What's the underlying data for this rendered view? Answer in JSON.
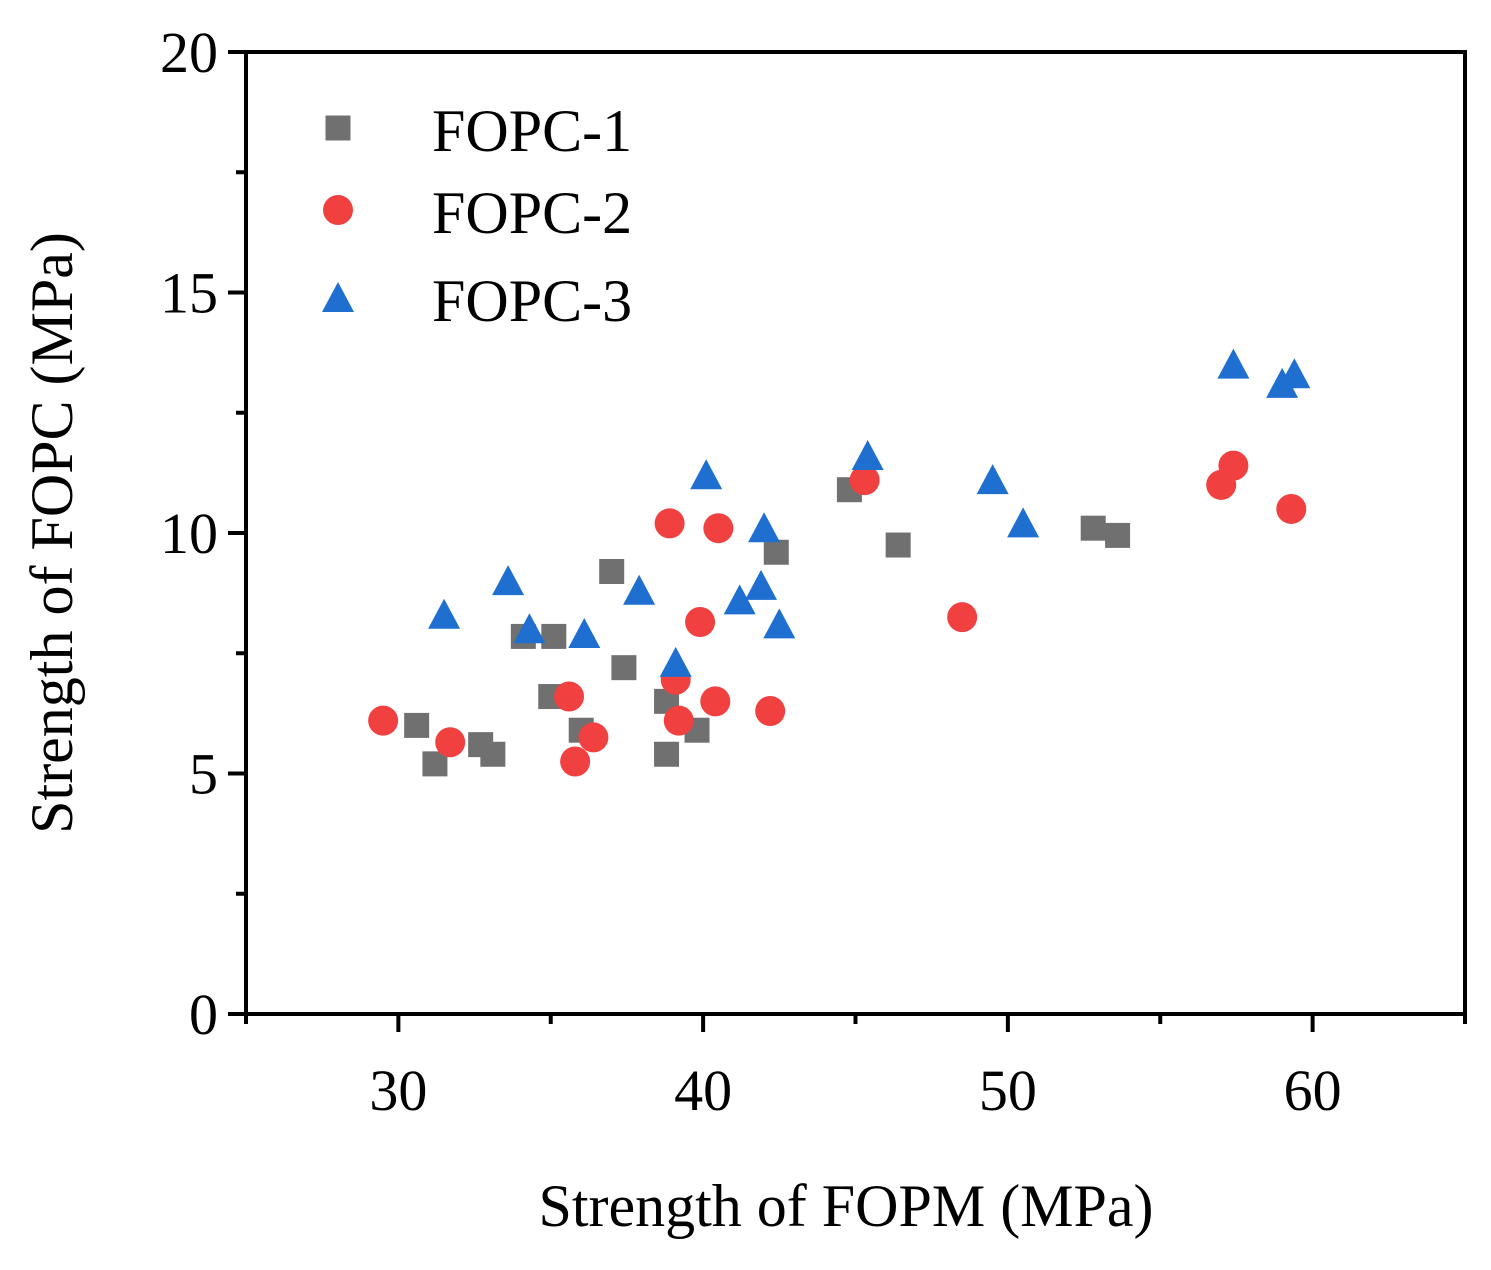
{
  "chart_data": {
    "type": "scatter",
    "title": "",
    "xlabel": "Strength of FOPM (MPa)",
    "ylabel": "Strength of  FOPC (MPa)",
    "xlim": [
      25,
      65
    ],
    "ylim": [
      0,
      20
    ],
    "x_ticks": [
      30,
      40,
      50,
      60
    ],
    "y_ticks": [
      0,
      5,
      10,
      15,
      20
    ],
    "grid": false,
    "legend_position": "top-left",
    "series": [
      {
        "name": "FOPC-1",
        "marker": "square",
        "color": "#707070",
        "points": [
          [
            30.6,
            6.0
          ],
          [
            31.2,
            5.2
          ],
          [
            32.7,
            5.6
          ],
          [
            33.1,
            5.4
          ],
          [
            34.1,
            7.85
          ],
          [
            35.1,
            7.85
          ],
          [
            35.0,
            6.6
          ],
          [
            36.0,
            5.9
          ],
          [
            37.0,
            9.2
          ],
          [
            37.4,
            7.2
          ],
          [
            38.8,
            5.4
          ],
          [
            38.8,
            6.5
          ],
          [
            39.8,
            5.9
          ],
          [
            42.4,
            9.6
          ],
          [
            44.8,
            10.9
          ],
          [
            46.4,
            9.75
          ],
          [
            52.8,
            10.1
          ],
          [
            53.6,
            9.95
          ]
        ]
      },
      {
        "name": "FOPC-2",
        "marker": "circle",
        "color": "#f04040",
        "points": [
          [
            29.5,
            6.1
          ],
          [
            31.7,
            5.65
          ],
          [
            35.6,
            6.6
          ],
          [
            35.8,
            5.25
          ],
          [
            36.4,
            5.75
          ],
          [
            38.9,
            10.2
          ],
          [
            39.1,
            6.95
          ],
          [
            39.2,
            6.1
          ],
          [
            39.9,
            8.15
          ],
          [
            40.4,
            6.5
          ],
          [
            40.5,
            10.1
          ],
          [
            42.2,
            6.3
          ],
          [
            45.3,
            11.1
          ],
          [
            48.5,
            8.25
          ],
          [
            57.0,
            11.0
          ],
          [
            57.4,
            11.4
          ],
          [
            59.3,
            10.5
          ]
        ]
      },
      {
        "name": "FOPC-3",
        "marker": "triangle",
        "color": "#1f6fd1",
        "points": [
          [
            31.5,
            8.3
          ],
          [
            33.6,
            9.0
          ],
          [
            34.3,
            8.0
          ],
          [
            36.1,
            7.9
          ],
          [
            37.9,
            8.8
          ],
          [
            39.1,
            7.3
          ],
          [
            40.1,
            11.2
          ],
          [
            41.2,
            8.6
          ],
          [
            41.9,
            8.9
          ],
          [
            42.0,
            10.1
          ],
          [
            42.5,
            8.1
          ],
          [
            45.4,
            11.6
          ],
          [
            49.5,
            11.1
          ],
          [
            50.5,
            10.2
          ],
          [
            57.4,
            13.5
          ],
          [
            59.0,
            13.1
          ],
          [
            59.4,
            13.3
          ]
        ]
      }
    ]
  }
}
